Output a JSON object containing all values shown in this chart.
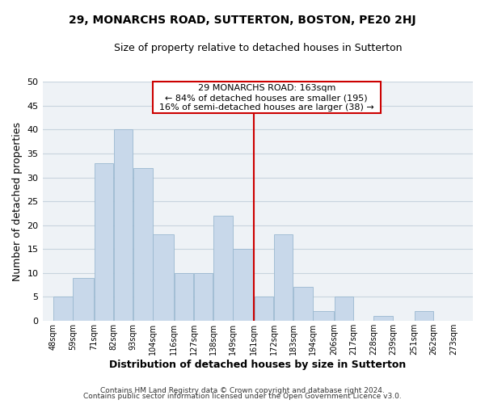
{
  "title1": "29, MONARCHS ROAD, SUTTERTON, BOSTON, PE20 2HJ",
  "title2": "Size of property relative to detached houses in Sutterton",
  "xlabel": "Distribution of detached houses by size in Sutterton",
  "ylabel": "Number of detached properties",
  "bar_left_edges": [
    48,
    59,
    71,
    82,
    93,
    104,
    116,
    127,
    138,
    149,
    161,
    172,
    183,
    194,
    206,
    217,
    228,
    239,
    251,
    262
  ],
  "bar_heights": [
    5,
    9,
    33,
    40,
    32,
    18,
    10,
    10,
    22,
    15,
    5,
    18,
    7,
    2,
    5,
    0,
    1,
    0,
    2,
    0
  ],
  "bar_widths": [
    11,
    12,
    11,
    11,
    11,
    12,
    11,
    11,
    11,
    12,
    11,
    11,
    11,
    12,
    11,
    11,
    11,
    12,
    11,
    11
  ],
  "tick_labels": [
    "48sqm",
    "59sqm",
    "71sqm",
    "82sqm",
    "93sqm",
    "104sqm",
    "116sqm",
    "127sqm",
    "138sqm",
    "149sqm",
    "161sqm",
    "172sqm",
    "183sqm",
    "194sqm",
    "206sqm",
    "217sqm",
    "228sqm",
    "239sqm",
    "251sqm",
    "262sqm",
    "273sqm"
  ],
  "tick_positions": [
    48,
    59,
    71,
    82,
    93,
    104,
    116,
    127,
    138,
    149,
    161,
    172,
    183,
    194,
    206,
    217,
    228,
    239,
    251,
    262,
    273
  ],
  "bar_color": "#c8d8ea",
  "bar_edge_color": "#9ab8d0",
  "vline_x": 161,
  "vline_color": "#cc0000",
  "ylim": [
    0,
    50
  ],
  "yticks": [
    0,
    5,
    10,
    15,
    20,
    25,
    30,
    35,
    40,
    45,
    50
  ],
  "annotation_title": "29 MONARCHS ROAD: 163sqm",
  "annotation_line1": "← 84% of detached houses are smaller (195)",
  "annotation_line2": "16% of semi-detached houses are larger (38) →",
  "footer1": "Contains HM Land Registry data © Crown copyright and database right 2024.",
  "footer2": "Contains public sector information licensed under the Open Government Licence v3.0.",
  "annotation_box_color": "#ffffff",
  "annotation_box_edge": "#cc0000",
  "grid_color": "#c8d4de",
  "background_color": "#ffffff",
  "plot_bg_color": "#eef2f6"
}
